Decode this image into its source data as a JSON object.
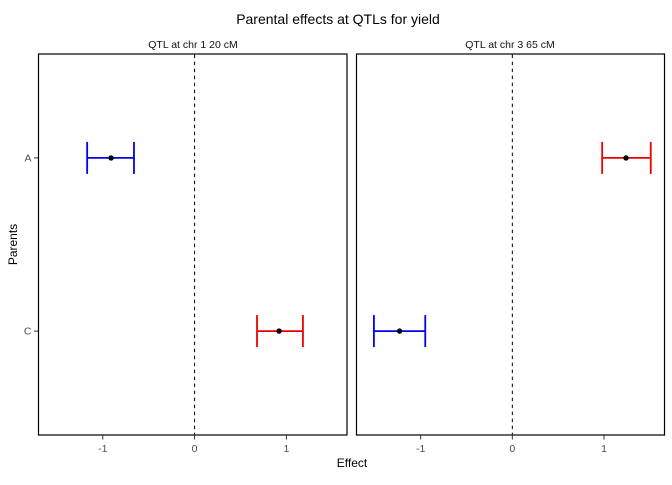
{
  "chart_data": {
    "type": "scatter",
    "subtype": "horizontal-errorbar-dotplot",
    "title": "Parental effects at QTLs for yield",
    "xlabel": "Effect",
    "ylabel": "Parents",
    "categories": [
      "A",
      "C"
    ],
    "x_ticks": [
      -1,
      0,
      1
    ],
    "xlim": [
      -1.7,
      1.66
    ],
    "reference_line_x": 0,
    "reference_line_style": "dashed",
    "grid": false,
    "legend": "none",
    "panels": [
      {
        "facet": "QTL at chr 1 20 cM",
        "points": [
          {
            "parent": "A",
            "effect": -0.91,
            "ci_low": -1.17,
            "ci_high": -0.66,
            "color": "blue"
          },
          {
            "parent": "C",
            "effect": 0.92,
            "ci_low": 0.68,
            "ci_high": 1.18,
            "color": "red"
          }
        ]
      },
      {
        "facet": "QTL at chr 3 65 cM",
        "points": [
          {
            "parent": "A",
            "effect": 1.24,
            "ci_low": 0.98,
            "ci_high": 1.51,
            "color": "red"
          },
          {
            "parent": "C",
            "effect": -1.23,
            "ci_low": -1.51,
            "ci_high": -0.95,
            "color": "blue"
          }
        ]
      }
    ],
    "colors": {
      "blue": "#0000EE",
      "red": "#EE0000",
      "point": "#000000",
      "panel_border": "#000000",
      "tick": "#333333",
      "axis_text": "#4d4d4d"
    }
  }
}
